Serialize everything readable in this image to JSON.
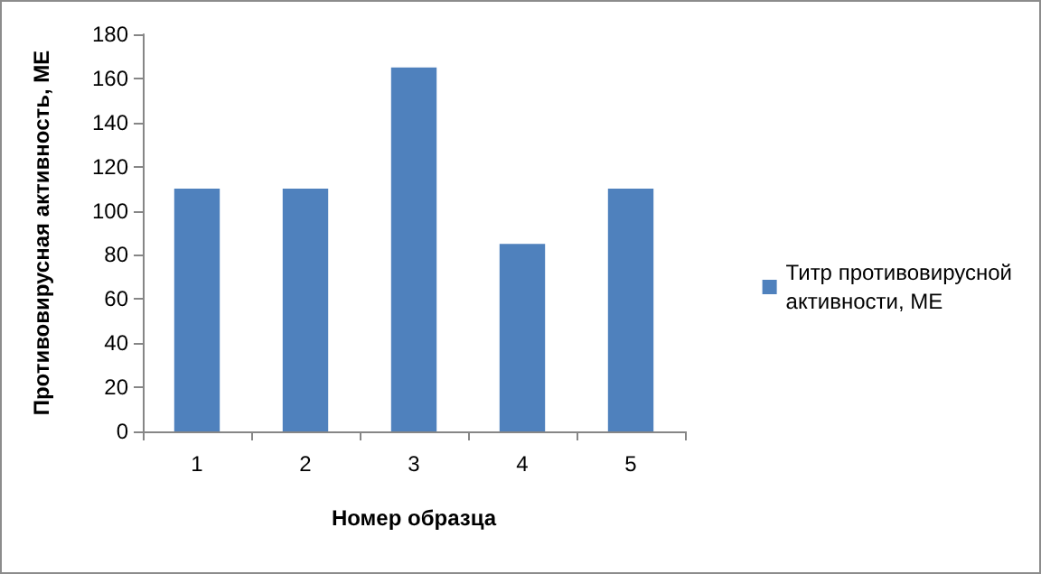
{
  "chart_data": {
    "type": "bar",
    "xlabel": "Номер образца",
    "ylabel": "Противовирусная активность, МЕ",
    "categories": [
      "1",
      "2",
      "3",
      "4",
      "5"
    ],
    "series": [
      {
        "name": "Титр противовирусной активности, МЕ",
        "color": "#4f81bd",
        "values": [
          110,
          110,
          165,
          85,
          110
        ]
      }
    ],
    "ylim": [
      0,
      180
    ],
    "yticks": [
      0,
      20,
      40,
      60,
      80,
      100,
      120,
      140,
      160,
      180
    ],
    "grid": false,
    "legend": "right"
  }
}
